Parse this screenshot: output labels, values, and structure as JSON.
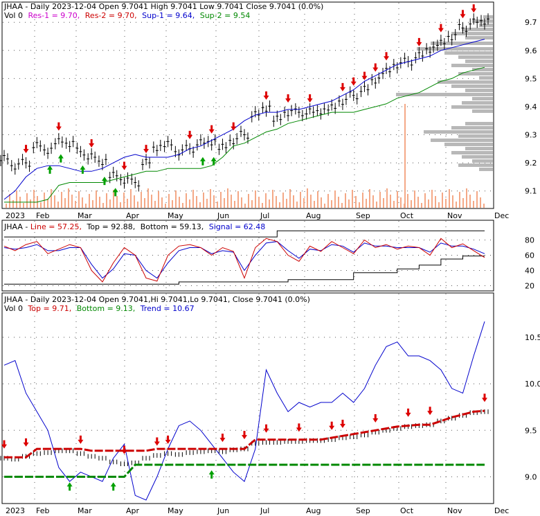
{
  "chart_data": [
    {
      "type": "candlestick",
      "panel": "price",
      "header_line1": [
        "JHAA - Daily 2023-12-04 Open 9.7041  High 9.7041  Low 9.7041  Close 9.7041 (0.0%)"
      ],
      "header_line2": [
        {
          "text": "Vol 0",
          "color": "#000000"
        },
        {
          "text": "Res-1 = 9.70,",
          "color": "#cc00cc"
        },
        {
          "text": "Res-2 = 9.70,",
          "color": "#cc0000"
        },
        {
          "text": "Sup-1 = 9.64,",
          "color": "#0000cc"
        },
        {
          "text": "Sup-2 = 9.54",
          "color": "#008800"
        }
      ],
      "y_ticks": [
        "9.7",
        "9.6",
        "9.5",
        "9.4",
        "9.3",
        "9.2",
        "9.1"
      ],
      "y_tick_values": [
        9.7,
        9.6,
        9.5,
        9.4,
        9.3,
        9.2,
        9.1
      ],
      "ylim": [
        9.05,
        9.74
      ],
      "x_ticks": [
        "2023",
        "Feb",
        "Mar",
        "Apr",
        "May",
        "Jun",
        "Jul",
        "Aug",
        "Sep",
        "Oct",
        "Nov",
        "Dec"
      ],
      "series": [
        {
          "name": "Close",
          "color": "#000000",
          "values": [
            9.22,
            9.19,
            9.2,
            9.26,
            9.24,
            9.28,
            9.27,
            9.24,
            9.22,
            9.2,
            9.16,
            9.14,
            9.13,
            9.2,
            9.25,
            9.27,
            9.24,
            9.25,
            9.27,
            9.27,
            9.26,
            9.28,
            9.3,
            9.37,
            9.39,
            9.36,
            9.38,
            9.38,
            9.38,
            9.38,
            9.4,
            9.42,
            9.44,
            9.46,
            9.49,
            9.53,
            9.55,
            9.56,
            9.58,
            9.6,
            9.63,
            9.65,
            9.68,
            9.7,
            9.7
          ]
        },
        {
          "name": "Sup-1",
          "color": "#0000cc",
          "values": [
            9.07,
            9.1,
            9.15,
            9.18,
            9.19,
            9.19,
            9.18,
            9.17,
            9.17,
            9.18,
            9.2,
            9.22,
            9.23,
            9.22,
            9.22,
            9.22,
            9.23,
            9.25,
            9.26,
            9.28,
            9.3,
            9.32,
            9.35,
            9.37,
            9.38,
            9.38,
            9.39,
            9.39,
            9.4,
            9.41,
            9.42,
            9.44,
            9.46,
            9.49,
            9.51,
            9.53,
            9.55,
            9.56,
            9.57,
            9.58,
            9.6,
            9.61,
            9.62,
            9.63,
            9.64
          ]
        },
        {
          "name": "Sup-2",
          "color": "#008800",
          "values": [
            9.06,
            9.06,
            9.06,
            9.06,
            9.07,
            9.12,
            9.13,
            9.13,
            9.13,
            9.13,
            9.14,
            9.15,
            9.16,
            9.17,
            9.17,
            9.18,
            9.18,
            9.18,
            9.18,
            9.19,
            9.22,
            9.26,
            9.27,
            9.29,
            9.31,
            9.32,
            9.34,
            9.35,
            9.36,
            9.37,
            9.38,
            9.38,
            9.38,
            9.39,
            9.4,
            9.41,
            9.43,
            9.44,
            9.45,
            9.47,
            9.49,
            9.5,
            9.52,
            9.53,
            9.54
          ]
        }
      ]
    },
    {
      "type": "line",
      "panel": "indicator",
      "header": [
        {
          "text": "JHAA - Line = 57.25,",
          "color": "#cc0000"
        },
        {
          "text": "Top = 92.88,",
          "color": "#000000"
        },
        {
          "text": "Bottom = 59.13,",
          "color": "#000000"
        },
        {
          "text": "Signal = 62.48",
          "color": "#0000cc"
        }
      ],
      "y_ticks": [
        "80",
        "60",
        "40",
        "20"
      ],
      "y_tick_values": [
        80,
        60,
        40,
        20
      ],
      "ylim": [
        15,
        95
      ],
      "series": [
        {
          "name": "Line",
          "color": "#cc0000",
          "values": [
            72,
            66,
            74,
            78,
            62,
            68,
            74,
            70,
            40,
            25,
            50,
            70,
            60,
            30,
            26,
            60,
            72,
            74,
            70,
            60,
            70,
            65,
            30,
            70,
            82,
            78,
            60,
            52,
            72,
            65,
            78,
            70,
            62,
            80,
            70,
            74,
            68,
            72,
            70,
            60,
            82,
            70,
            75,
            66,
            57
          ]
        },
        {
          "name": "Signal",
          "color": "#0000cc",
          "values": [
            70,
            68,
            70,
            74,
            66,
            66,
            70,
            70,
            48,
            30,
            42,
            62,
            60,
            40,
            30,
            50,
            66,
            70,
            70,
            62,
            66,
            64,
            40,
            60,
            76,
            78,
            66,
            56,
            68,
            66,
            74,
            72,
            64,
            76,
            72,
            72,
            70,
            70,
            70,
            64,
            76,
            72,
            72,
            68,
            62
          ]
        },
        {
          "name": "Top",
          "color": "#000000",
          "values": [
            84,
            84,
            84,
            84,
            84,
            84,
            84,
            84,
            84,
            84,
            84,
            84,
            84,
            84,
            84,
            84,
            84,
            84,
            84,
            84,
            84,
            84,
            84,
            84,
            84,
            92,
            92,
            92,
            92,
            92,
            92,
            92,
            92,
            92,
            92,
            92,
            92,
            92,
            92,
            92,
            92,
            92,
            92,
            92,
            92
          ]
        },
        {
          "name": "Bottom",
          "color": "#000000",
          "values": [
            22,
            22,
            22,
            22,
            22,
            22,
            22,
            22,
            22,
            22,
            22,
            22,
            22,
            22,
            22,
            22,
            25,
            25,
            25,
            25,
            25,
            25,
            25,
            25,
            25,
            25,
            28,
            28,
            28,
            28,
            28,
            28,
            37,
            37,
            37,
            37,
            42,
            42,
            47,
            47,
            55,
            55,
            59,
            59,
            59
          ]
        }
      ]
    },
    {
      "type": "candlestick",
      "panel": "trend",
      "header_line1": [
        "JHAA - Daily 2023-12-04 Open 9.7041,Hi 9.7041,Lo 9.7041, Close 9.7041 (0.0%)"
      ],
      "header_line2": [
        {
          "text": "Vol 0",
          "color": "#000000"
        },
        {
          "text": "Top = 9.71,",
          "color": "#cc0000"
        },
        {
          "text": "Bottom = 9.13,",
          "color": "#008800"
        },
        {
          "text": "Trend = 10.67",
          "color": "#0000cc"
        }
      ],
      "y_ticks": [
        "10.5",
        "10.0",
        "9.5",
        "9.0"
      ],
      "y_tick_values": [
        10.5,
        10.0,
        9.5,
        9.0
      ],
      "ylim": [
        8.75,
        10.85
      ],
      "x_ticks": [
        "2023",
        "Feb",
        "Mar",
        "Apr",
        "May",
        "Jun",
        "Jul",
        "Aug",
        "Sep",
        "Oct",
        "Nov",
        "Dec"
      ],
      "series": [
        {
          "name": "Close",
          "color": "#000000",
          "values": [
            9.2,
            9.19,
            9.22,
            9.25,
            9.26,
            9.28,
            9.28,
            9.25,
            9.22,
            9.2,
            9.16,
            9.14,
            9.15,
            9.2,
            9.23,
            9.25,
            9.24,
            9.26,
            9.27,
            9.28,
            9.27,
            9.29,
            9.3,
            9.36,
            9.37,
            9.37,
            9.38,
            9.38,
            9.39,
            9.39,
            9.4,
            9.42,
            9.43,
            9.45,
            9.48,
            9.5,
            9.52,
            9.54,
            9.55,
            9.56,
            9.6,
            9.63,
            9.66,
            9.69,
            9.7
          ]
        },
        {
          "name": "Trend",
          "color": "#0000cc",
          "values": [
            10.2,
            10.25,
            9.9,
            9.7,
            9.5,
            9.1,
            8.95,
            9.05,
            9.0,
            8.95,
            9.2,
            9.35,
            8.8,
            8.75,
            9.0,
            9.3,
            9.55,
            9.6,
            9.5,
            9.35,
            9.2,
            9.05,
            8.95,
            9.3,
            10.15,
            9.9,
            9.7,
            9.8,
            9.75,
            9.8,
            9.8,
            9.9,
            9.8,
            9.95,
            10.2,
            10.4,
            10.45,
            10.3,
            10.3,
            10.25,
            10.15,
            9.95,
            9.9,
            10.3,
            10.67
          ]
        },
        {
          "name": "Top",
          "color": "#cc0000",
          "values": [
            9.21,
            9.21,
            9.21,
            9.3,
            9.3,
            9.3,
            9.3,
            9.3,
            9.28,
            9.28,
            9.28,
            9.28,
            9.28,
            9.28,
            9.3,
            9.3,
            9.3,
            9.3,
            9.3,
            9.3,
            9.3,
            9.3,
            9.3,
            9.4,
            9.4,
            9.4,
            9.4,
            9.4,
            9.4,
            9.4,
            9.42,
            9.44,
            9.46,
            9.48,
            9.5,
            9.52,
            9.54,
            9.55,
            9.56,
            9.56,
            9.6,
            9.64,
            9.67,
            9.7,
            9.71
          ]
        },
        {
          "name": "Bottom",
          "color": "#008800",
          "values": [
            9.0,
            9.0,
            9.0,
            9.0,
            9.0,
            9.0,
            9.0,
            9.0,
            9.0,
            9.0,
            9.0,
            9.0,
            9.13,
            9.13,
            9.13,
            9.13,
            9.13,
            9.13,
            9.13,
            9.13,
            9.13,
            9.13,
            9.13,
            9.13,
            9.13,
            9.13,
            9.13,
            9.13,
            9.13,
            9.13,
            9.13,
            9.13,
            9.13,
            9.13,
            9.13,
            9.13,
            9.13,
            9.13,
            9.13,
            9.13,
            9.13,
            9.13,
            9.13,
            9.13,
            9.13
          ]
        }
      ]
    }
  ]
}
